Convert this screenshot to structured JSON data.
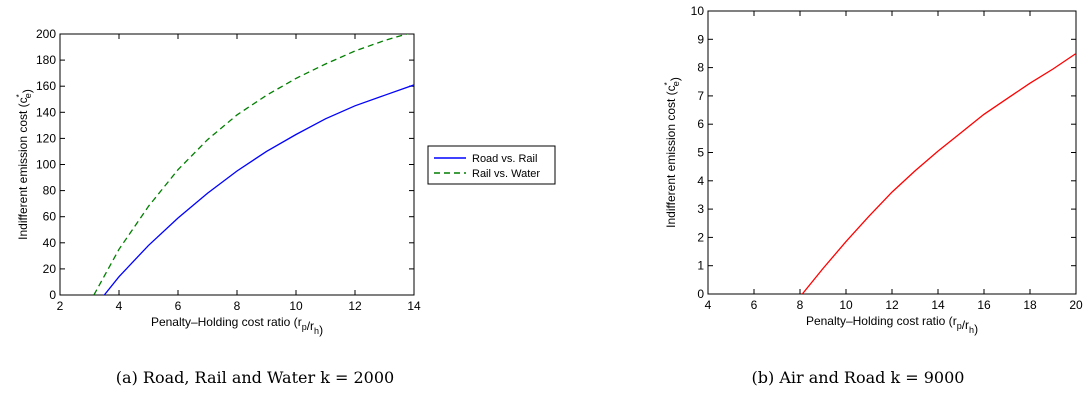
{
  "chart_data": [
    {
      "type": "line",
      "caption": "(a) Road, Rail and Water k = 2000",
      "xlabel": "Penalty–Holding cost ratio (r_p/r_h)",
      "ylabel": "Indifferent emission cost (c_e^*)",
      "xlim": [
        2,
        14
      ],
      "ylim": [
        0,
        200
      ],
      "xticks": [
        2,
        4,
        6,
        8,
        10,
        12,
        14
      ],
      "yticks": [
        0,
        20,
        40,
        60,
        80,
        100,
        120,
        140,
        160,
        180,
        200
      ],
      "grid": false,
      "legend": "outside-right",
      "series": [
        {
          "name": "Road vs. Rail",
          "color": "#0000ff",
          "style": "solid",
          "x": [
            3.5,
            4,
            5,
            6,
            7,
            8,
            9,
            10,
            11,
            12,
            13,
            14
          ],
          "y": [
            0,
            14,
            38,
            59,
            78,
            95,
            110,
            123,
            135,
            145,
            153,
            161
          ]
        },
        {
          "name": "Rail vs. Water",
          "color": "#007f00",
          "style": "dashed",
          "x": [
            3.15,
            4,
            5,
            6,
            7,
            8,
            9,
            10,
            11,
            12,
            13,
            13.9
          ],
          "y": [
            0,
            35,
            68,
            96,
            119,
            138,
            153,
            166,
            177,
            187,
            195,
            201
          ]
        }
      ]
    },
    {
      "type": "line",
      "caption": "(b) Air and Road k = 9000",
      "xlabel": "Penalty–Holding cost ratio (r_p/r_h)",
      "ylabel": "Indifferent emission cost (c_e^*)",
      "xlim": [
        4,
        20
      ],
      "ylim": [
        0,
        10
      ],
      "xticks": [
        4,
        6,
        8,
        10,
        12,
        14,
        16,
        18,
        20
      ],
      "yticks": [
        0,
        1,
        2,
        3,
        4,
        5,
        6,
        7,
        8,
        9,
        10
      ],
      "grid": false,
      "series": [
        {
          "color": "#ff0000",
          "style": "solid",
          "x": [
            8.1,
            9,
            10,
            11,
            12,
            13,
            14,
            15,
            16,
            17,
            18,
            19,
            20
          ],
          "y": [
            0,
            0.9,
            1.85,
            2.75,
            3.6,
            4.35,
            5.05,
            5.7,
            6.35,
            6.9,
            7.45,
            7.95,
            8.5
          ]
        }
      ]
    }
  ],
  "legend": {
    "items": [
      "Road vs. Rail",
      "Rail vs. Water"
    ]
  },
  "captions": {
    "a": "(a) Road, Rail and Water k = 2000",
    "b": "(b) Air and Road k = 9000"
  }
}
